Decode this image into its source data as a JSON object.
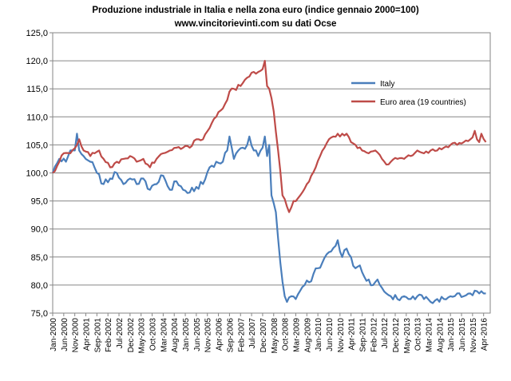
{
  "chart_data": {
    "type": "line",
    "title": "Produzione industriale in Italia e nella zona euro (indice gennaio 2000=100)",
    "subtitle": "www.vincitorievinti.com su dati Ocse",
    "xlabel": "",
    "ylabel": "",
    "ylim": [
      75,
      125
    ],
    "y_ticks": [
      "75,0",
      "80,0",
      "85,0",
      "90,0",
      "95,0",
      "100,0",
      "105,0",
      "110,0",
      "115,0",
      "120,0",
      "125,0"
    ],
    "x_tick_labels": [
      "Jan-2000",
      "Jun-2000",
      "Nov-2000",
      "Apr-2001",
      "Sep-2001",
      "Feb-2002",
      "Jul-2002",
      "Dec-2002",
      "May-2003",
      "Oct-2003",
      "Mar-2004",
      "Aug-2004",
      "Jan-2005",
      "Jun-2005",
      "Nov-2005",
      "Apr-2006",
      "Sep-2006",
      "Feb-2007",
      "Jul-2007",
      "Dec-2007",
      "May-2008",
      "Oct-2008",
      "Mar-2009",
      "Aug-2009",
      "Jan-2010",
      "Jun-2010",
      "Nov-2010",
      "Apr-2011",
      "Sep-2011",
      "Feb-2012",
      "Jul-2012",
      "Dec-2012",
      "May-2013",
      "Oct-2013",
      "Mar-2014",
      "Aug-2014",
      "Jan-2015",
      "Jun-2015",
      "Nov-2015",
      "Apr-2016"
    ],
    "x_tick_step_months": 5,
    "grid": "horizontal",
    "legend_position": "right",
    "series": [
      {
        "name": "Italy",
        "color": "#4a7ebb",
        "anchors": [
          [
            0,
            100
          ],
          [
            3,
            102.5
          ],
          [
            6,
            102
          ],
          [
            8,
            104
          ],
          [
            10,
            104
          ],
          [
            11,
            107
          ],
          [
            12,
            104
          ],
          [
            14,
            103
          ],
          [
            17,
            102
          ],
          [
            20,
            100
          ],
          [
            23,
            98
          ],
          [
            26,
            99
          ],
          [
            29,
            100
          ],
          [
            32,
            98
          ],
          [
            35,
            99
          ],
          [
            38,
            98
          ],
          [
            41,
            99
          ],
          [
            44,
            97
          ],
          [
            47,
            98
          ],
          [
            50,
            99.5
          ],
          [
            53,
            97
          ],
          [
            56,
            98.5
          ],
          [
            59,
            97
          ],
          [
            62,
            96.5
          ],
          [
            65,
            97.5
          ],
          [
            68,
            98
          ],
          [
            71,
            101
          ],
          [
            74,
            102
          ],
          [
            77,
            102
          ],
          [
            79,
            104
          ],
          [
            80,
            106.5
          ],
          [
            82,
            102.5
          ],
          [
            84,
            104
          ],
          [
            86,
            104.5
          ],
          [
            88,
            105
          ],
          [
            89,
            106.5
          ],
          [
            91,
            104
          ],
          [
            93,
            103
          ],
          [
            95,
            104.5
          ],
          [
            96,
            106.5
          ],
          [
            97,
            103
          ],
          [
            98,
            105
          ],
          [
            99,
            96
          ],
          [
            101,
            93
          ],
          [
            103,
            84
          ],
          [
            105,
            78
          ],
          [
            106,
            77
          ],
          [
            108,
            78
          ],
          [
            110,
            77.5
          ],
          [
            112,
            79
          ],
          [
            114,
            80
          ],
          [
            116,
            80.5
          ],
          [
            118,
            82
          ],
          [
            120,
            83
          ],
          [
            122,
            84
          ],
          [
            124,
            85.5
          ],
          [
            126,
            86
          ],
          [
            128,
            87
          ],
          [
            129,
            88
          ],
          [
            131,
            85
          ],
          [
            133,
            86.5
          ],
          [
            135,
            85
          ],
          [
            137,
            83
          ],
          [
            139,
            83.5
          ],
          [
            141,
            81.5
          ],
          [
            143,
            81
          ],
          [
            145,
            80
          ],
          [
            147,
            81
          ],
          [
            149,
            79.5
          ],
          [
            151,
            78.5
          ],
          [
            153,
            78
          ],
          [
            156,
            77.5
          ],
          [
            159,
            78
          ],
          [
            162,
            77.5
          ],
          [
            165,
            78
          ],
          [
            168,
            77.5
          ],
          [
            171,
            77
          ],
          [
            174,
            77.5
          ],
          [
            177,
            77.5
          ],
          [
            180,
            78
          ],
          [
            183,
            78.5
          ],
          [
            186,
            78
          ],
          [
            189,
            78.5
          ],
          [
            191,
            79
          ],
          [
            193,
            78.5
          ],
          [
            195,
            78.5
          ],
          [
            196,
            78.5
          ]
        ]
      },
      {
        "name": "Euro area (19 countries)",
        "color": "#be4b48",
        "anchors": [
          [
            0,
            100
          ],
          [
            3,
            102
          ],
          [
            5,
            103.5
          ],
          [
            8,
            103.5
          ],
          [
            11,
            105
          ],
          [
            12,
            106
          ],
          [
            14,
            104
          ],
          [
            17,
            103
          ],
          [
            19,
            103.5
          ],
          [
            21,
            104
          ],
          [
            23,
            102.5
          ],
          [
            26,
            101
          ],
          [
            29,
            102
          ],
          [
            32,
            102.5
          ],
          [
            35,
            103
          ],
          [
            38,
            102
          ],
          [
            41,
            102.5
          ],
          [
            44,
            101
          ],
          [
            47,
            102.5
          ],
          [
            50,
            103.5
          ],
          [
            53,
            104
          ],
          [
            56,
            104.5
          ],
          [
            59,
            104.5
          ],
          [
            62,
            104.5
          ],
          [
            65,
            106
          ],
          [
            68,
            106
          ],
          [
            71,
            108
          ],
          [
            74,
            110
          ],
          [
            77,
            111.5
          ],
          [
            79,
            113
          ],
          [
            80,
            114.5
          ],
          [
            82,
            115
          ],
          [
            85,
            115.5
          ],
          [
            88,
            117
          ],
          [
            91,
            118
          ],
          [
            93,
            118
          ],
          [
            95,
            118.5
          ],
          [
            96,
            120
          ],
          [
            97,
            115.5
          ],
          [
            98,
            115
          ],
          [
            100,
            111
          ],
          [
            102,
            104
          ],
          [
            104,
            96
          ],
          [
            106,
            94
          ],
          [
            107,
            93
          ],
          [
            109,
            95
          ],
          [
            112,
            96
          ],
          [
            115,
            98
          ],
          [
            117,
            99.5
          ],
          [
            119,
            101
          ],
          [
            121,
            103
          ],
          [
            123,
            104.5
          ],
          [
            125,
            106
          ],
          [
            127,
            106.5
          ],
          [
            129,
            107
          ],
          [
            130,
            106.5
          ],
          [
            131,
            107
          ],
          [
            133,
            107
          ],
          [
            135,
            105.5
          ],
          [
            137,
            105
          ],
          [
            140,
            104
          ],
          [
            143,
            103.5
          ],
          [
            146,
            104
          ],
          [
            149,
            102.5
          ],
          [
            151,
            101.5
          ],
          [
            153,
            102
          ],
          [
            156,
            102.5
          ],
          [
            159,
            102.5
          ],
          [
            162,
            103
          ],
          [
            165,
            104
          ],
          [
            168,
            103.5
          ],
          [
            171,
            104
          ],
          [
            174,
            104
          ],
          [
            177,
            104.5
          ],
          [
            180,
            105
          ],
          [
            183,
            105
          ],
          [
            186,
            105.5
          ],
          [
            189,
            106
          ],
          [
            191,
            107.5
          ],
          [
            192,
            106
          ],
          [
            193,
            105.5
          ],
          [
            194,
            107
          ],
          [
            196,
            105.5
          ]
        ]
      }
    ]
  }
}
